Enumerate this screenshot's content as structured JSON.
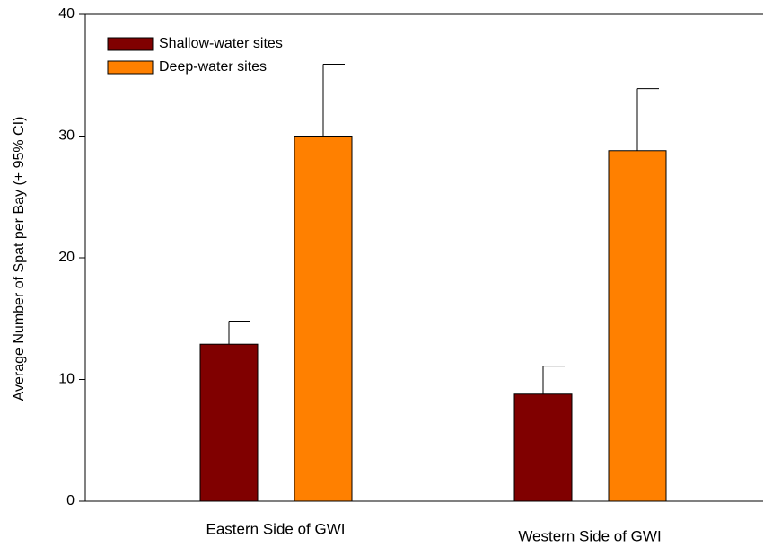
{
  "chart_data": {
    "type": "bar",
    "y_label": "Average Number of Spat per Bay (+ 95% CI)",
    "categories": [
      "Eastern Side of GWI",
      "Western Side of GWI"
    ],
    "series": [
      {
        "name": "Shallow-water sites",
        "color": "#800000",
        "values": [
          12.9,
          8.8
        ],
        "errors": [
          1.9,
          2.3
        ]
      },
      {
        "name": "Deep-water sites",
        "color": "#ff8000",
        "values": [
          30.0,
          28.8
        ],
        "errors": [
          5.9,
          5.1
        ]
      }
    ],
    "ylim": [
      0,
      40
    ],
    "yticks": [
      0,
      10,
      20,
      30,
      40
    ],
    "legend": "upper-left"
  }
}
